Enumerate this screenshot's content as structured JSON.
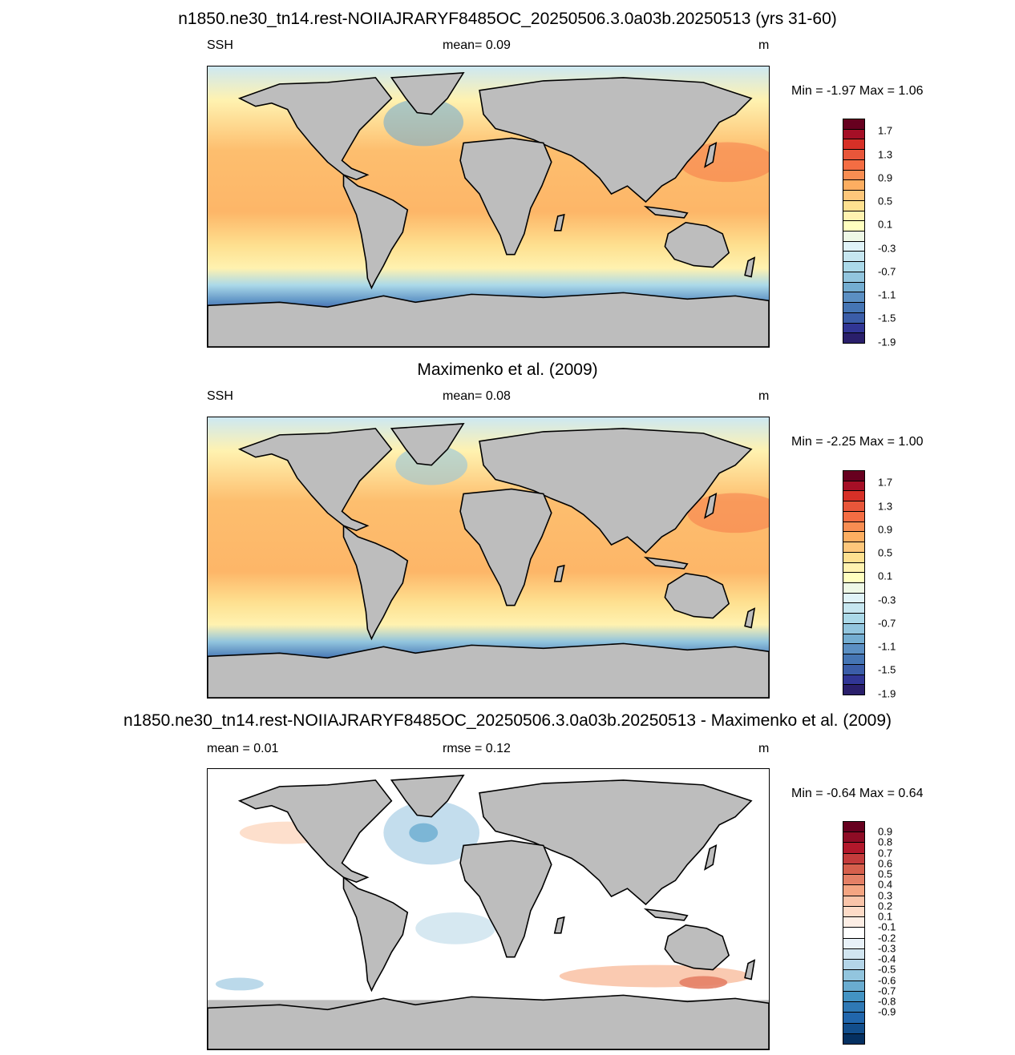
{
  "panels": [
    {
      "title": "n1850.ne30_tn14.rest-NOIIAJRARYF8485OC_20250506.3.0a03b.20250513 (yrs 31-60)",
      "left_label": "SSH",
      "center_label": "mean=   0.09",
      "units": "m",
      "minmax": "Min =  -1.97 Max =   1.06",
      "colorbar": {
        "labels": [
          "1.7",
          "1.3",
          "0.9",
          "0.5",
          "0.1",
          "-0.3",
          "-0.7",
          "-1.1",
          "-1.5",
          "-1.9"
        ],
        "colors": [
          "#67001f",
          "#a50f26",
          "#d73027",
          "#e8563a",
          "#f46d43",
          "#f88d52",
          "#fdae61",
          "#fec77b",
          "#fee090",
          "#fff2b0",
          "#ffffbf",
          "#eef8e6",
          "#e0f3f8",
          "#c6e6f0",
          "#abd9e9",
          "#92c5de",
          "#74add1",
          "#5b8fc3",
          "#4575b4",
          "#3b5da8",
          "#313695",
          "#2a1f6b"
        ]
      },
      "mean_value": 0.09,
      "field_min": -1.97,
      "field_max": 1.06
    },
    {
      "title": "Maximenko et al. (2009)",
      "left_label": "SSH",
      "center_label": "mean=   0.08",
      "units": "m",
      "minmax": "Min =  -2.25 Max =   1.00",
      "colorbar": {
        "labels": [
          "1.7",
          "1.3",
          "0.9",
          "0.5",
          "0.1",
          "-0.3",
          "-0.7",
          "-1.1",
          "-1.5",
          "-1.9"
        ],
        "colors": [
          "#67001f",
          "#a50f26",
          "#d73027",
          "#e8563a",
          "#f46d43",
          "#f88d52",
          "#fdae61",
          "#fec77b",
          "#fee090",
          "#fff2b0",
          "#ffffbf",
          "#eef8e6",
          "#e0f3f8",
          "#c6e6f0",
          "#abd9e9",
          "#92c5de",
          "#74add1",
          "#5b8fc3",
          "#4575b4",
          "#3b5da8",
          "#313695",
          "#2a1f6b"
        ]
      },
      "mean_value": 0.08,
      "field_min": -2.25,
      "field_max": 1.0
    },
    {
      "title": "n1850.ne30_tn14.rest-NOIIAJRARYF8485OC_20250506.3.0a03b.20250513 - Maximenko et al. (2009)",
      "left_label": "mean =   0.01",
      "center_label": "rmse =   0.12",
      "units": "m",
      "minmax": "Min =  -0.64 Max =   0.64",
      "colorbar": {
        "labels": [
          "0.9",
          "0.8",
          "0.7",
          "0.6",
          "0.5",
          "0.4",
          "0.3",
          "0.2",
          "0.1",
          "-0.1",
          "-0.2",
          "-0.3",
          "-0.4",
          "-0.5",
          "-0.6",
          "-0.7",
          "-0.8",
          "-0.9"
        ],
        "colors": [
          "#67001f",
          "#8e0c25",
          "#b2182b",
          "#c43c3c",
          "#d6604d",
          "#e48066",
          "#f4a582",
          "#f9c4a9",
          "#fddbc7",
          "#fdeee5",
          "#ffffff",
          "#e8f1f8",
          "#d1e5f0",
          "#b4d5e8",
          "#92c5de",
          "#6aacd0",
          "#4393c3",
          "#2f79b5",
          "#2166ac",
          "#124e8c",
          "#053061"
        ]
      },
      "mean_value": 0.01,
      "rmse_value": 0.12,
      "field_min": -0.64,
      "field_max": 0.64
    }
  ],
  "colors": {
    "land": "#bdbdbd",
    "coast": "#000000"
  }
}
